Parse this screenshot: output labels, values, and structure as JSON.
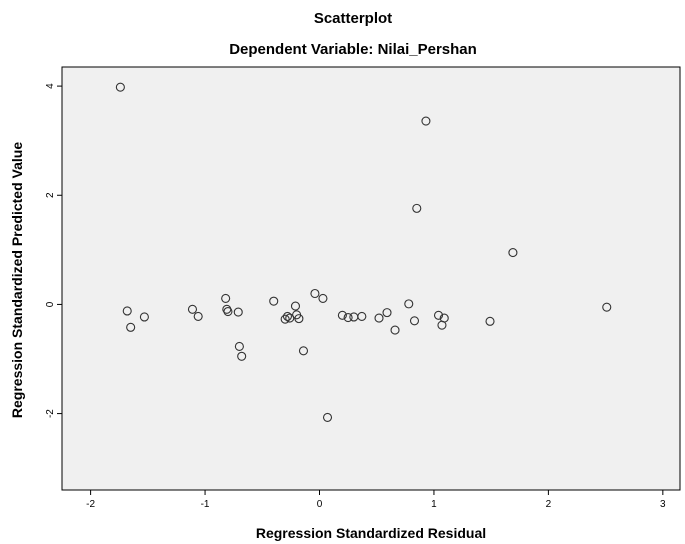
{
  "chart_data": {
    "type": "scatter",
    "title": "Scatterplot",
    "subtitle": "Dependent Variable: Nilai_Pershan",
    "xlabel": "Regression Standardized Residual",
    "ylabel": "Regression Standardized Predicted Value",
    "xlim": [
      -2.25,
      3.15
    ],
    "ylim": [
      -3.4,
      4.35
    ],
    "x_ticks": [
      -2,
      -1,
      0,
      1,
      2,
      3
    ],
    "y_ticks": [
      -2,
      0,
      2,
      4
    ],
    "grid": false,
    "colors": {
      "plot_background": "#f0f0f0",
      "marker_stroke": "#333333",
      "frame": "#000000"
    },
    "points": [
      {
        "x": -1.74,
        "y": 3.98
      },
      {
        "x": 0.93,
        "y": 3.36
      },
      {
        "x": 0.85,
        "y": 1.76
      },
      {
        "x": 1.69,
        "y": 0.95
      },
      {
        "x": -1.68,
        "y": -0.12
      },
      {
        "x": -1.65,
        "y": -0.42
      },
      {
        "x": -1.53,
        "y": -0.23
      },
      {
        "x": -1.11,
        "y": -0.09
      },
      {
        "x": -1.06,
        "y": -0.22
      },
      {
        "x": -0.82,
        "y": 0.11
      },
      {
        "x": -0.81,
        "y": -0.09
      },
      {
        "x": -0.8,
        "y": -0.13
      },
      {
        "x": -0.71,
        "y": -0.14
      },
      {
        "x": -0.7,
        "y": -0.77
      },
      {
        "x": -0.68,
        "y": -0.95
      },
      {
        "x": -0.4,
        "y": 0.06
      },
      {
        "x": -0.3,
        "y": -0.27
      },
      {
        "x": -0.28,
        "y": -0.22
      },
      {
        "x": -0.26,
        "y": -0.25
      },
      {
        "x": -0.21,
        "y": -0.03
      },
      {
        "x": -0.2,
        "y": -0.19
      },
      {
        "x": -0.18,
        "y": -0.26
      },
      {
        "x": -0.14,
        "y": -0.85
      },
      {
        "x": -0.04,
        "y": 0.2
      },
      {
        "x": 0.03,
        "y": 0.11
      },
      {
        "x": 0.07,
        "y": -2.07
      },
      {
        "x": 0.2,
        "y": -0.2
      },
      {
        "x": 0.25,
        "y": -0.24
      },
      {
        "x": 0.3,
        "y": -0.23
      },
      {
        "x": 0.37,
        "y": -0.22
      },
      {
        "x": 0.52,
        "y": -0.25
      },
      {
        "x": 0.59,
        "y": -0.15
      },
      {
        "x": 0.66,
        "y": -0.47
      },
      {
        "x": 0.78,
        "y": 0.01
      },
      {
        "x": 0.83,
        "y": -0.3
      },
      {
        "x": 1.04,
        "y": -0.2
      },
      {
        "x": 1.07,
        "y": -0.38
      },
      {
        "x": 1.09,
        "y": -0.25
      },
      {
        "x": 1.49,
        "y": -0.31
      },
      {
        "x": 2.51,
        "y": -0.05
      }
    ]
  }
}
